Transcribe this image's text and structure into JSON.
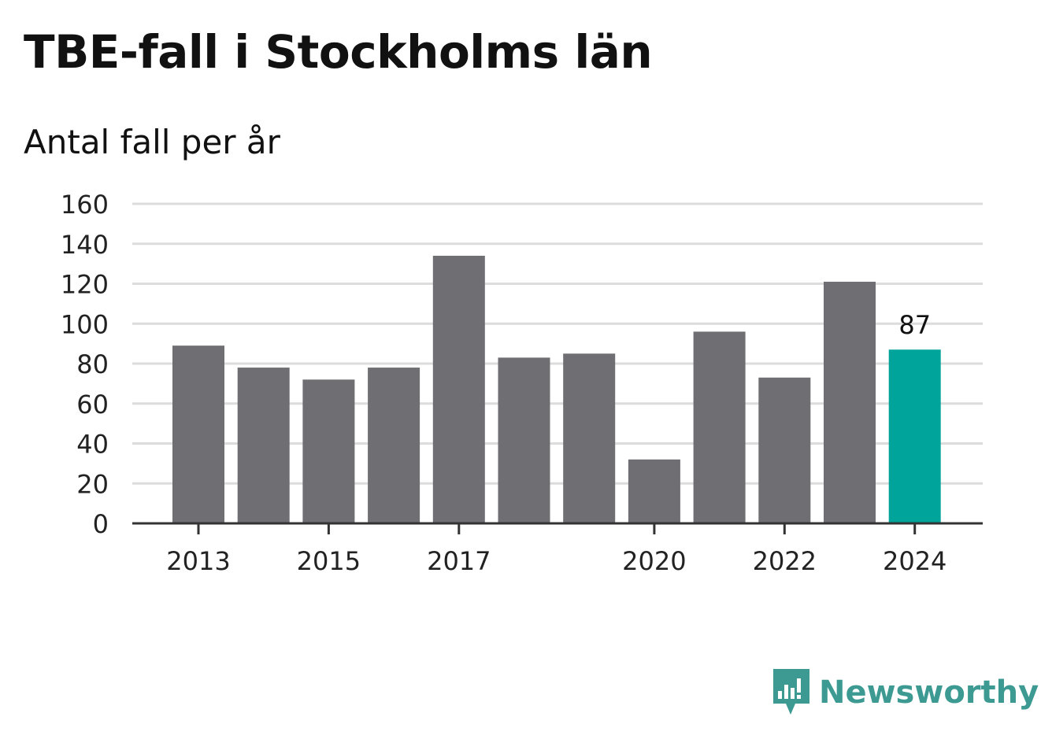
{
  "title": "TBE-fall i Stockholms län",
  "subtitle": "Antal fall per år",
  "brand": {
    "name": "Newsworthy",
    "color": "#3d9a93"
  },
  "colors": {
    "bar": "#6e6e73",
    "highlight": "#00a49a",
    "grid": "#dcdcdc",
    "axis": "#333333"
  },
  "chart_data": {
    "type": "bar",
    "categories": [
      "2013",
      "2014",
      "2015",
      "2016",
      "2017",
      "2018",
      "2019",
      "2020",
      "2021",
      "2022",
      "2023",
      "2024"
    ],
    "values": [
      89,
      78,
      72,
      78,
      134,
      83,
      85,
      32,
      96,
      73,
      121,
      87
    ],
    "x_tick_labels": [
      "2013",
      "2015",
      "2017",
      "2020",
      "2022",
      "2024"
    ],
    "y_ticks": [
      0,
      20,
      40,
      60,
      80,
      100,
      120,
      140,
      160
    ],
    "ylim": [
      0,
      160
    ],
    "highlight_category": "2024",
    "data_labels": [
      {
        "category": "2024",
        "text": "87"
      }
    ],
    "grid": true,
    "title": "TBE-fall i Stockholms län",
    "subtitle": "Antal fall per år",
    "xlabel": "",
    "ylabel": ""
  }
}
